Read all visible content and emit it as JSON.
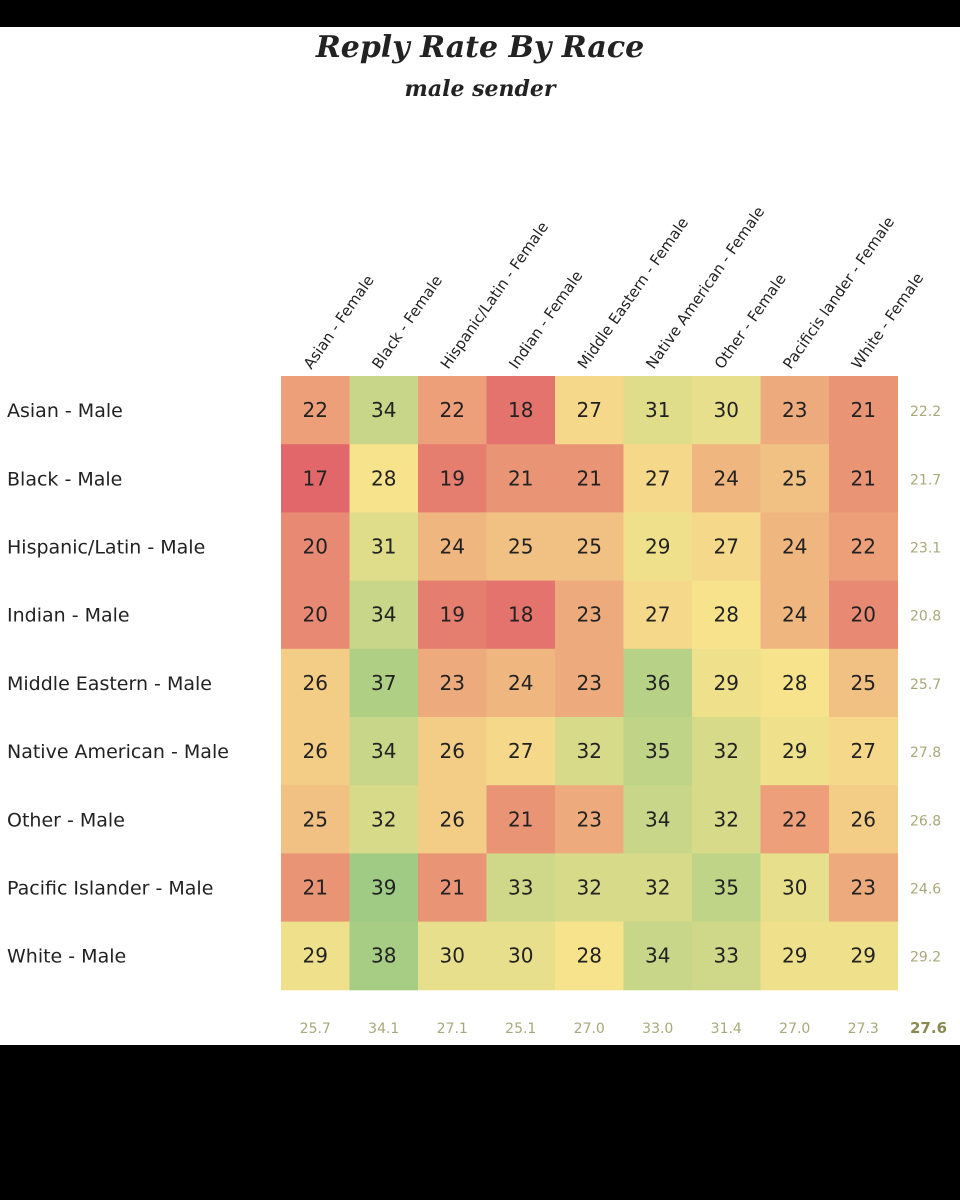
{
  "chart_data": {
    "type": "heatmap",
    "title": "Reply Rate By Race",
    "subtitle": "male sender",
    "columns": [
      "Asian - Female",
      "Black - Female",
      "Hispanic/Latin - Female",
      "Indian - Female",
      "Middle Eastern - Female",
      "Native American - Female",
      "Other - Female",
      "Pacificis lander - Female",
      "White - Female"
    ],
    "rows": [
      "Asian - Male",
      "Black - Male",
      "Hispanic/Latin - Male",
      "Indian - Male",
      "Middle Eastern - Male",
      "Native American - Male",
      "Other - Male",
      "Pacific Islander - Male",
      "White - Male"
    ],
    "values": [
      [
        22,
        34,
        22,
        18,
        27,
        31,
        30,
        23,
        21
      ],
      [
        17,
        28,
        19,
        21,
        21,
        27,
        24,
        25,
        21
      ],
      [
        20,
        31,
        24,
        25,
        25,
        29,
        27,
        24,
        22
      ],
      [
        20,
        34,
        19,
        18,
        23,
        27,
        28,
        24,
        20
      ],
      [
        26,
        37,
        23,
        24,
        23,
        36,
        29,
        28,
        25
      ],
      [
        26,
        34,
        26,
        27,
        32,
        35,
        32,
        29,
        27
      ],
      [
        25,
        32,
        26,
        21,
        23,
        34,
        32,
        22,
        26
      ],
      [
        21,
        39,
        21,
        33,
        32,
        32,
        35,
        30,
        23
      ],
      [
        29,
        38,
        30,
        30,
        28,
        34,
        33,
        29,
        29
      ]
    ],
    "row_averages": [
      "22.2",
      "21.7",
      "23.1",
      "20.8",
      "25.7",
      "27.8",
      "26.8",
      "24.6",
      "29.2"
    ],
    "column_averages": [
      "25.7",
      "34.1",
      "27.1",
      "25.1",
      "27.0",
      "33.0",
      "31.4",
      "27.0",
      "27.3"
    ],
    "overall_average": "27.6",
    "color_scale": {
      "low": "#e2676a",
      "mid": "#f7e38c",
      "high": "#9fcb84"
    }
  }
}
